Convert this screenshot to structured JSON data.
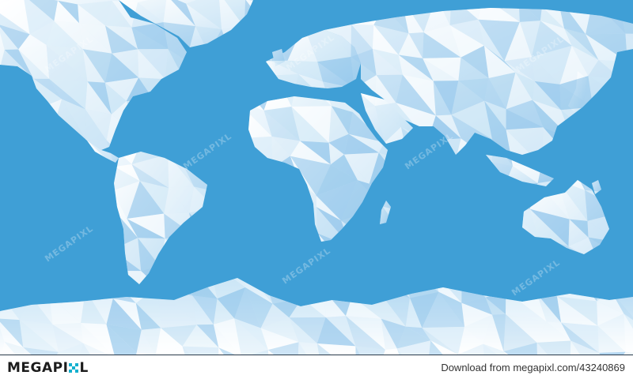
{
  "map": {
    "ocean_color": "#3f9fd6",
    "land_light": "#ffffff",
    "land_mid": "#d7ebf8",
    "land_dark": "#8fc4ea",
    "watermark_text": "MEGAPIXL",
    "style": "low-poly world map"
  },
  "footer": {
    "brand_prefix": "MEGAPI",
    "brand_suffix": "L",
    "brand_accent": "#15b0cf",
    "download_text": "Download from megapixl.com/43240869"
  }
}
